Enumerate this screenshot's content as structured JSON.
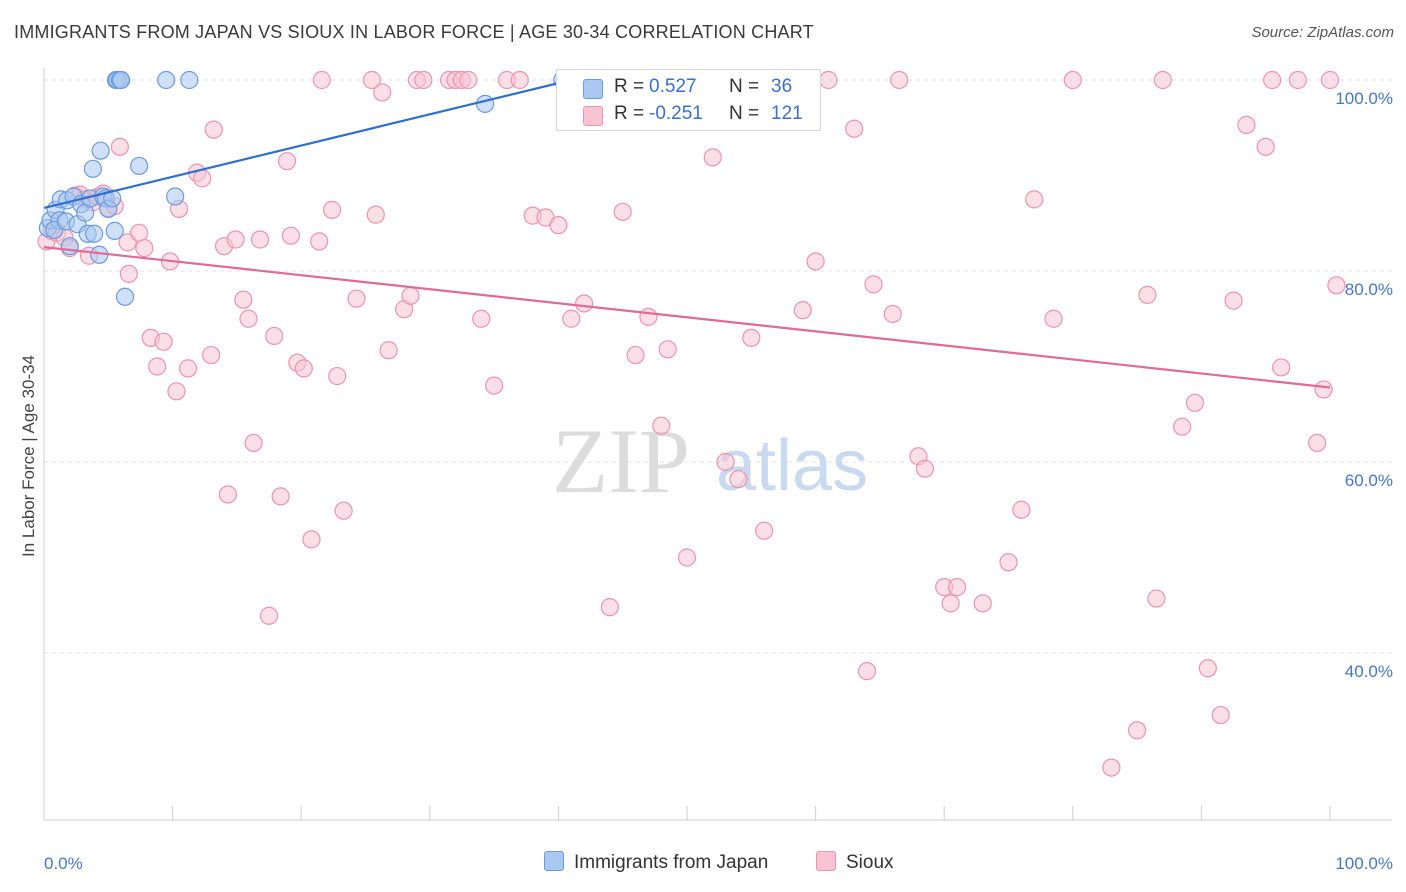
{
  "title": "IMMIGRANTS FROM JAPAN VS SIOUX IN LABOR FORCE | AGE 30-34 CORRELATION CHART",
  "source": "Source: ZipAtlas.com",
  "watermark": {
    "zip": "ZIP",
    "atlas": "atlas"
  },
  "colors": {
    "blue_fill": "#aac8f0",
    "blue_stroke": "#6a9be0",
    "blue_line": "#2e6fd0",
    "pink_fill": "#f8c4d4",
    "pink_stroke": "#ec93b0",
    "pink_line": "#e06a98",
    "grid": "#e2e2e2",
    "axis_text": "#4477cc"
  },
  "legend": {
    "rows": [
      {
        "r_label": "R =",
        "r_value": "0.527",
        "n_label": "N =",
        "n_value": "36"
      },
      {
        "r_label": "R =",
        "r_value": "-0.251",
        "n_label": "N =",
        "n_value": "121"
      }
    ]
  },
  "bottom_legend": {
    "series1": "Immigrants from Japan",
    "series2": "Sioux"
  },
  "chart_data": {
    "type": "scatter",
    "title": "IMMIGRANTS FROM JAPAN VS SIOUX IN LABOR FORCE | AGE 30-34 CORRELATION CHART",
    "xlabel": "",
    "ylabel": "In Labor Force | Age 30-34",
    "xlim": [
      0,
      100
    ],
    "ylim": [
      20,
      102
    ],
    "x_tick_labels": [
      "0.0%",
      "100.0%"
    ],
    "y_ticks": [
      40,
      60,
      80,
      100
    ],
    "y_tick_labels": [
      "40.0%",
      "60.0%",
      "80.0%",
      "100.0%"
    ],
    "grid": true,
    "legend_position": "top-center",
    "series": [
      {
        "name": "Immigrants from Japan",
        "color": "#aac8f0",
        "trend": {
          "x": [
            0,
            41
          ],
          "y": [
            86.6,
            100
          ]
        },
        "points": [
          [
            0.3,
            84.5
          ],
          [
            0.5,
            85.3
          ],
          [
            0.9,
            86.4
          ],
          [
            1.2,
            85.3
          ],
          [
            0.8,
            84.3
          ],
          [
            1.3,
            87.5
          ],
          [
            1.8,
            87.4
          ],
          [
            1.7,
            85.2
          ],
          [
            2.0,
            82.6
          ],
          [
            2.3,
            87.8
          ],
          [
            2.6,
            84.9
          ],
          [
            2.9,
            87.0
          ],
          [
            3.2,
            86.1
          ],
          [
            3.4,
            83.9
          ],
          [
            3.6,
            87.6
          ],
          [
            3.8,
            90.7
          ],
          [
            3.9,
            83.9
          ],
          [
            4.3,
            81.7
          ],
          [
            4.6,
            87.8
          ],
          [
            4.8,
            87.6
          ],
          [
            5.0,
            86.5
          ],
          [
            5.5,
            84.2
          ],
          [
            5.3,
            87.6
          ],
          [
            4.4,
            92.6
          ],
          [
            5.6,
            100.0
          ],
          [
            5.7,
            100.0
          ],
          [
            5.9,
            100.0
          ],
          [
            6.0,
            100.0
          ],
          [
            6.3,
            77.3
          ],
          [
            7.4,
            91.0
          ],
          [
            9.5,
            100.0
          ],
          [
            10.2,
            87.8
          ],
          [
            11.3,
            100.0
          ],
          [
            34.3,
            97.5
          ],
          [
            40.3,
            100.0
          ],
          [
            42.3,
            100.0
          ]
        ]
      },
      {
        "name": "Sioux",
        "color": "#f8c4d4",
        "trend": {
          "x": [
            0,
            100
          ],
          "y": [
            82.5,
            67.8
          ]
        },
        "points": [
          [
            0.2,
            83.1
          ],
          [
            0.6,
            84.2
          ],
          [
            1.0,
            84.0
          ],
          [
            1.6,
            83.5
          ],
          [
            2.0,
            82.4
          ],
          [
            2.4,
            87.9
          ],
          [
            2.8,
            88.0
          ],
          [
            3.2,
            87.5
          ],
          [
            3.5,
            81.6
          ],
          [
            3.8,
            87.2
          ],
          [
            4.2,
            87.8
          ],
          [
            4.6,
            88.1
          ],
          [
            5.0,
            86.6
          ],
          [
            5.5,
            86.8
          ],
          [
            5.9,
            93.0
          ],
          [
            6.5,
            83.0
          ],
          [
            6.6,
            79.7
          ],
          [
            7.4,
            84.0
          ],
          [
            7.8,
            82.4
          ],
          [
            8.3,
            73.0
          ],
          [
            8.8,
            70.0
          ],
          [
            9.3,
            72.6
          ],
          [
            9.8,
            81.0
          ],
          [
            10.3,
            67.4
          ],
          [
            10.5,
            86.5
          ],
          [
            11.2,
            69.8
          ],
          [
            11.9,
            90.3
          ],
          [
            12.3,
            89.7
          ],
          [
            13.0,
            71.2
          ],
          [
            13.2,
            94.8
          ],
          [
            14.0,
            82.6
          ],
          [
            14.3,
            56.6
          ],
          [
            14.9,
            83.3
          ],
          [
            15.5,
            77.0
          ],
          [
            15.9,
            75.0
          ],
          [
            16.3,
            62.0
          ],
          [
            16.8,
            83.3
          ],
          [
            17.5,
            43.9
          ],
          [
            17.9,
            73.2
          ],
          [
            18.4,
            56.4
          ],
          [
            18.9,
            91.5
          ],
          [
            19.2,
            83.7
          ],
          [
            19.7,
            70.4
          ],
          [
            20.2,
            69.8
          ],
          [
            20.8,
            51.9
          ],
          [
            21.4,
            83.1
          ],
          [
            21.6,
            100.0
          ],
          [
            22.4,
            86.4
          ],
          [
            22.8,
            69.0
          ],
          [
            23.3,
            54.9
          ],
          [
            24.3,
            77.1
          ],
          [
            25.5,
            100.0
          ],
          [
            25.8,
            85.9
          ],
          [
            26.3,
            98.7
          ],
          [
            26.8,
            71.7
          ],
          [
            28.0,
            76.0
          ],
          [
            28.5,
            77.4
          ],
          [
            29.0,
            100.0
          ],
          [
            29.5,
            100.0
          ],
          [
            31.5,
            100.0
          ],
          [
            32.0,
            100.0
          ],
          [
            32.5,
            100.0
          ],
          [
            33.0,
            100.0
          ],
          [
            34.0,
            75.0
          ],
          [
            35.0,
            68.0
          ],
          [
            36.0,
            100.0
          ],
          [
            37.0,
            100.0
          ],
          [
            38.0,
            85.8
          ],
          [
            39.0,
            85.6
          ],
          [
            40.0,
            84.8
          ],
          [
            41.0,
            75.0
          ],
          [
            42.0,
            76.6
          ],
          [
            43.0,
            100.0
          ],
          [
            44.0,
            44.8
          ],
          [
            45.0,
            86.2
          ],
          [
            46.0,
            71.2
          ],
          [
            47.0,
            75.2
          ],
          [
            48.0,
            63.8
          ],
          [
            48.5,
            71.8
          ],
          [
            50.0,
            50.0
          ],
          [
            51.0,
            100.0
          ],
          [
            52.0,
            91.9
          ],
          [
            53.0,
            60.0
          ],
          [
            55.0,
            73.0
          ],
          [
            54.0,
            58.2
          ],
          [
            56.0,
            52.8
          ],
          [
            57.0,
            100.0
          ],
          [
            59.0,
            75.9
          ],
          [
            60.0,
            81.0
          ],
          [
            61.0,
            100.0
          ],
          [
            63.0,
            94.9
          ],
          [
            64.0,
            38.1
          ],
          [
            64.5,
            78.6
          ],
          [
            66.0,
            75.5
          ],
          [
            66.5,
            100.0
          ],
          [
            68.0,
            60.6
          ],
          [
            68.5,
            59.3
          ],
          [
            70.0,
            46.9
          ],
          [
            70.5,
            45.2
          ],
          [
            71.0,
            46.9
          ],
          [
            73.0,
            45.2
          ],
          [
            75.0,
            49.5
          ],
          [
            76.0,
            55.0
          ],
          [
            77.0,
            87.5
          ],
          [
            78.5,
            75.0
          ],
          [
            80.0,
            100.0
          ],
          [
            83.0,
            28.0
          ],
          [
            85.0,
            31.9
          ],
          [
            85.8,
            77.5
          ],
          [
            86.5,
            45.7
          ],
          [
            87.0,
            100.0
          ],
          [
            88.5,
            63.7
          ],
          [
            89.5,
            66.2
          ],
          [
            90.5,
            38.4
          ],
          [
            91.5,
            33.5
          ],
          [
            92.5,
            76.9
          ],
          [
            93.5,
            95.3
          ],
          [
            95.0,
            93.0
          ],
          [
            95.5,
            100.0
          ],
          [
            96.2,
            69.9
          ],
          [
            97.5,
            100.0
          ],
          [
            99.0,
            62.0
          ],
          [
            99.5,
            67.6
          ],
          [
            100.0,
            100.0
          ],
          [
            100.5,
            78.5
          ]
        ]
      }
    ]
  }
}
